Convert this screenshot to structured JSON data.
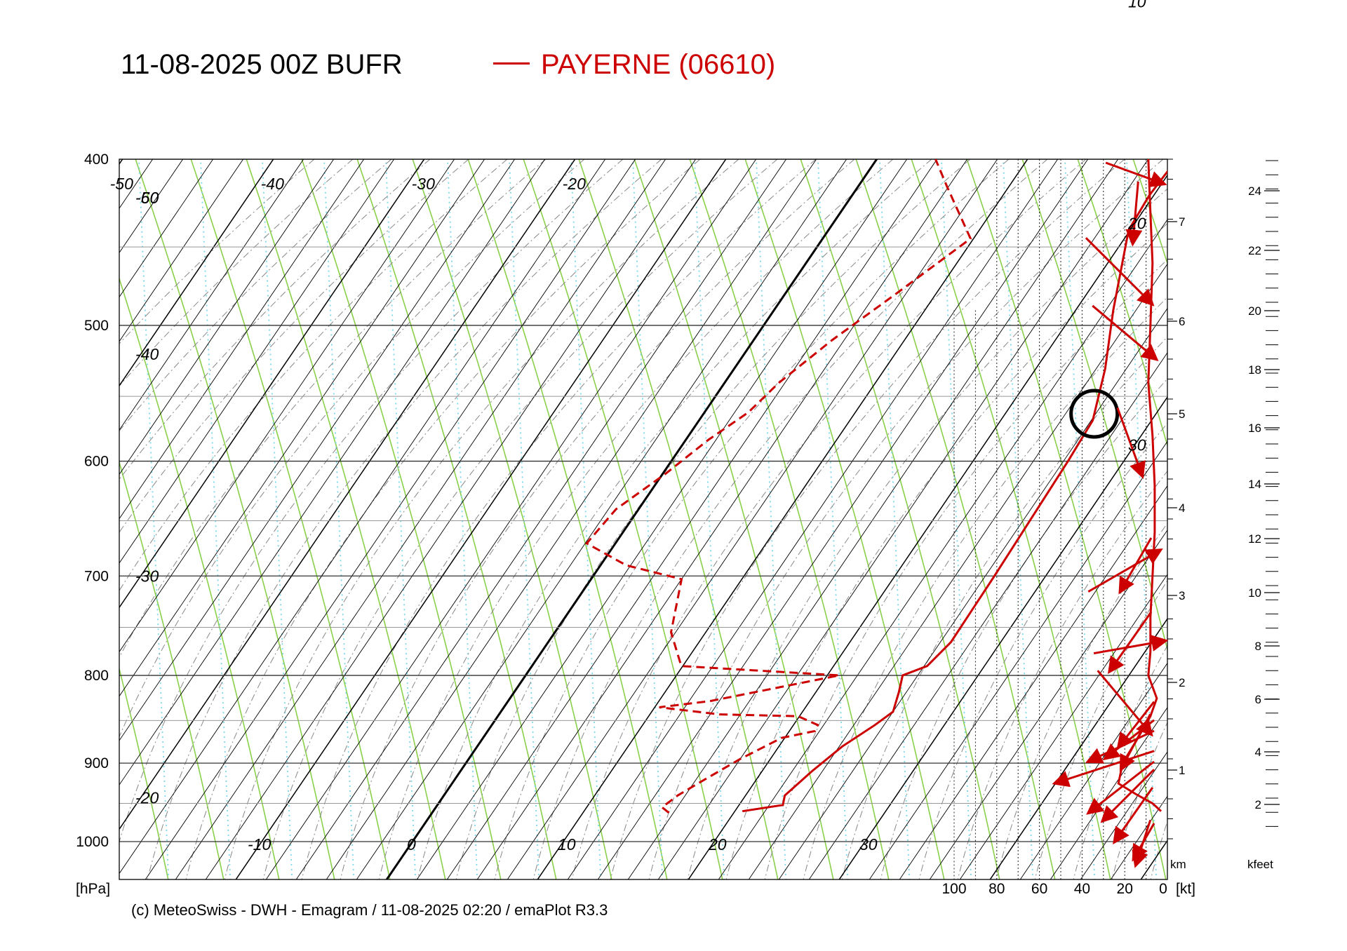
{
  "title": "11-08-2025 00Z BUFR",
  "legend_label": "PAYERNE (06610)",
  "footer": "(c) MeteoSwiss - DWH - Emagram / 11-08-2025  02:20 / emaPlot R3.3",
  "colors": {
    "profile": "#cc0000",
    "dry_adiabat": "#8ad04a",
    "mixing_ratio": "#7ad8ea",
    "grid": "#000000"
  },
  "chart_data": {
    "type": "line",
    "title": "11-08-2025 00Z BUFR",
    "ylabel": "[hPa]",
    "y_scale": "log",
    "ylim": [
      1000,
      400
    ],
    "pressure_ticks": [
      1000,
      900,
      800,
      700,
      600,
      500,
      400
    ],
    "pressure_tick_labels": [
      "1000",
      "900",
      "800",
      "700",
      "600",
      "500",
      "400"
    ],
    "temperature_labels": [
      "-10",
      "0",
      "10",
      "20",
      "30"
    ],
    "isotherm_labels_left": [
      "-60",
      "-50",
      "-40",
      "-30",
      "-20"
    ],
    "isotherm_labels_top": [
      "-60",
      "-50",
      "-40",
      "-30",
      "-20"
    ],
    "isotherm_labels_right": [
      "10",
      "20",
      "30"
    ],
    "wind_axis_labels": [
      "100",
      "80",
      "60",
      "40",
      "20",
      "0"
    ],
    "wind_axis_unit": "[kt]",
    "km_labels": [
      "1",
      "2",
      "3",
      "4",
      "5",
      "6",
      "7"
    ],
    "km_unit": "km",
    "kfeet_labels": [
      "2",
      "4",
      "6",
      "8",
      "10",
      "12",
      "14",
      "16",
      "18",
      "20",
      "22",
      "24"
    ],
    "kfeet_unit": "kfeet",
    "grid": true,
    "legend_position": "top-center",
    "series": [
      {
        "name": "PAYERNE (06610)",
        "kind": "temperature",
        "points": [
          [
            960,
            20.5
          ],
          [
            952,
            22.9
          ],
          [
            940,
            22.6
          ],
          [
            910,
            23.3
          ],
          [
            880,
            24.2
          ],
          [
            855,
            25.4
          ],
          [
            840,
            26.0
          ],
          [
            818,
            25.5
          ],
          [
            800,
            25.0
          ],
          [
            790,
            26.2
          ],
          [
            765,
            26.7
          ],
          [
            700,
            26.6
          ],
          [
            600,
            26.3
          ],
          [
            568,
            26.1
          ],
          [
            530,
            24.6
          ],
          [
            490,
            22.5
          ],
          [
            440,
            19.9
          ],
          [
            420,
            19.7
          ],
          [
            400,
            19.9
          ]
        ]
      },
      {
        "name": "dew point",
        "kind": "dewpoint",
        "points": [
          [
            962,
            15.7
          ],
          [
            955,
            15.0
          ],
          [
            940,
            15.5
          ],
          [
            925,
            16.3
          ],
          [
            895,
            18.0
          ],
          [
            870,
            19.8
          ],
          [
            862,
            21.7
          ],
          [
            855,
            21.6
          ],
          [
            845,
            19.9
          ],
          [
            843,
            14.6
          ],
          [
            835,
            10.3
          ],
          [
            828,
            13.4
          ],
          [
            800,
            20.8
          ],
          [
            790,
            9.9
          ],
          [
            755,
            7.7
          ],
          [
            703,
            6.0
          ],
          [
            690,
            1.7
          ],
          [
            670,
            -1.9
          ],
          [
            640,
            -1.5
          ],
          [
            610,
            0.2
          ],
          [
            583,
            1.5
          ],
          [
            562,
            2.9
          ],
          [
            540,
            3.6
          ],
          [
            510,
            5.2
          ],
          [
            480,
            7.3
          ],
          [
            445,
            9.8
          ],
          [
            415,
            5.9
          ],
          [
            400,
            3.9
          ]
        ]
      },
      {
        "name": "wind speed",
        "kind": "wind_profile",
        "points": [
          [
            960,
            0
          ],
          [
            950,
            4
          ],
          [
            938,
            12
          ],
          [
            925,
            20
          ],
          [
            900,
            18
          ],
          [
            875,
            12
          ],
          [
            845,
            5
          ],
          [
            825,
            2
          ],
          [
            800,
            6
          ],
          [
            775,
            5
          ],
          [
            740,
            5
          ],
          [
            700,
            4
          ],
          [
            660,
            3
          ],
          [
            620,
            3
          ],
          [
            580,
            4
          ],
          [
            540,
            6
          ],
          [
            500,
            5
          ],
          [
            460,
            4
          ],
          [
            430,
            5
          ],
          [
            400,
            6
          ]
        ]
      }
    ],
    "wind_barbs": [
      {
        "pressure": 1002,
        "dir_deg": 18,
        "speed_kt": 23
      },
      {
        "pressure": 1000,
        "dir_deg": 30,
        "speed_kt": 20
      },
      {
        "pressure": 965,
        "dir_deg": 35,
        "speed_kt": 32
      },
      {
        "pressure": 940,
        "dir_deg": 45,
        "speed_kt": 35
      },
      {
        "pressure": 930,
        "dir_deg": 52,
        "speed_kt": 40
      },
      {
        "pressure": 905,
        "dir_deg": 72,
        "speed_kt": 50
      },
      {
        "pressure": 880,
        "dir_deg": 65,
        "speed_kt": 35
      },
      {
        "pressure": 875,
        "dir_deg": 28,
        "speed_kt": 30
      },
      {
        "pressure": 872,
        "dir_deg": 52,
        "speed_kt": 30
      },
      {
        "pressure": 855,
        "dir_deg": 38,
        "speed_kt": 28
      },
      {
        "pressure": 830,
        "dir_deg": 320,
        "speed_kt": 40
      },
      {
        "pressure": 765,
        "dir_deg": 35,
        "speed_kt": 35
      },
      {
        "pressure": 770,
        "dir_deg": 260,
        "speed_kt": 35
      },
      {
        "pressure": 695,
        "dir_deg": 240,
        "speed_kt": 40
      },
      {
        "pressure": 690,
        "dir_deg": 30,
        "speed_kt": 30
      },
      {
        "pressure": 585,
        "dir_deg": 340,
        "speed_kt": 35
      },
      {
        "pressure": 505,
        "dir_deg": 310,
        "speed_kt": 40
      },
      {
        "pressure": 465,
        "dir_deg": 315,
        "speed_kt": 45
      },
      {
        "pressure": 430,
        "dir_deg": 5,
        "speed_kt": 30
      },
      {
        "pressure": 400,
        "dir_deg": 290,
        "speed_kt": 30
      }
    ],
    "marker": {
      "label": "circle",
      "pressure": 563,
      "temperature": 25.9
    }
  }
}
